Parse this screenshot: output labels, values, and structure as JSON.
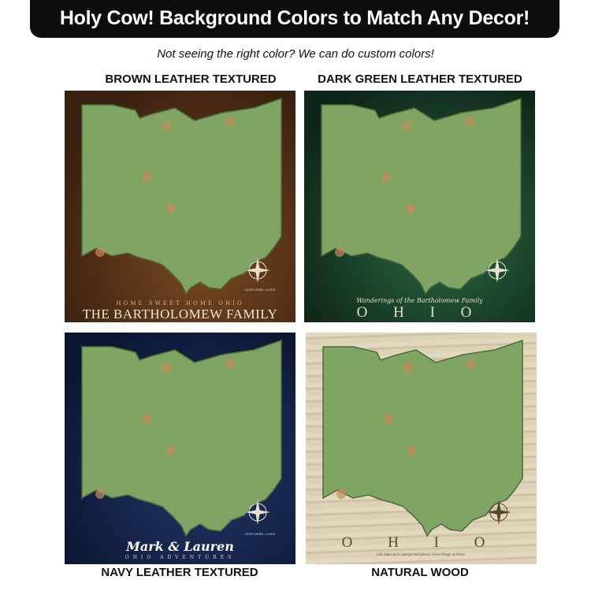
{
  "banner": {
    "title": "Holy Cow! Background Colors to Match Any Decor!"
  },
  "subtitle": "Not seeing the right color?   We can do custom colors!",
  "panels": [
    {
      "label": "BROWN LEATHER TEXTURED",
      "bg": "#4a2a14",
      "line1": "HOME SWEET HOME OHIO",
      "line2": "THE BARTHOLOMEW FAMILY",
      "legend": "• EXPLORED  • LIVED"
    },
    {
      "label": "DARK GREEN LEATHER TEXTURED",
      "bg": "#143322",
      "line1": "Wanderings of the Bartholomew Family",
      "line2": "O H I O"
    },
    {
      "label": "NAVY LEATHER TEXTURED",
      "bg": "#13203f",
      "line1": "Mark & Lauren",
      "line2": "OHIO ADVENTURES",
      "legend": "• EXPLORED  • LIVED"
    },
    {
      "label": "NATURAL WOOD",
      "bg": "#d9ceb4",
      "line1": "O H I O",
      "line2": "Life takes us to unexpected places. Love brings us home."
    }
  ],
  "colors": {
    "map_green": "#7fa463",
    "map_edge": "#4d6b3a"
  }
}
